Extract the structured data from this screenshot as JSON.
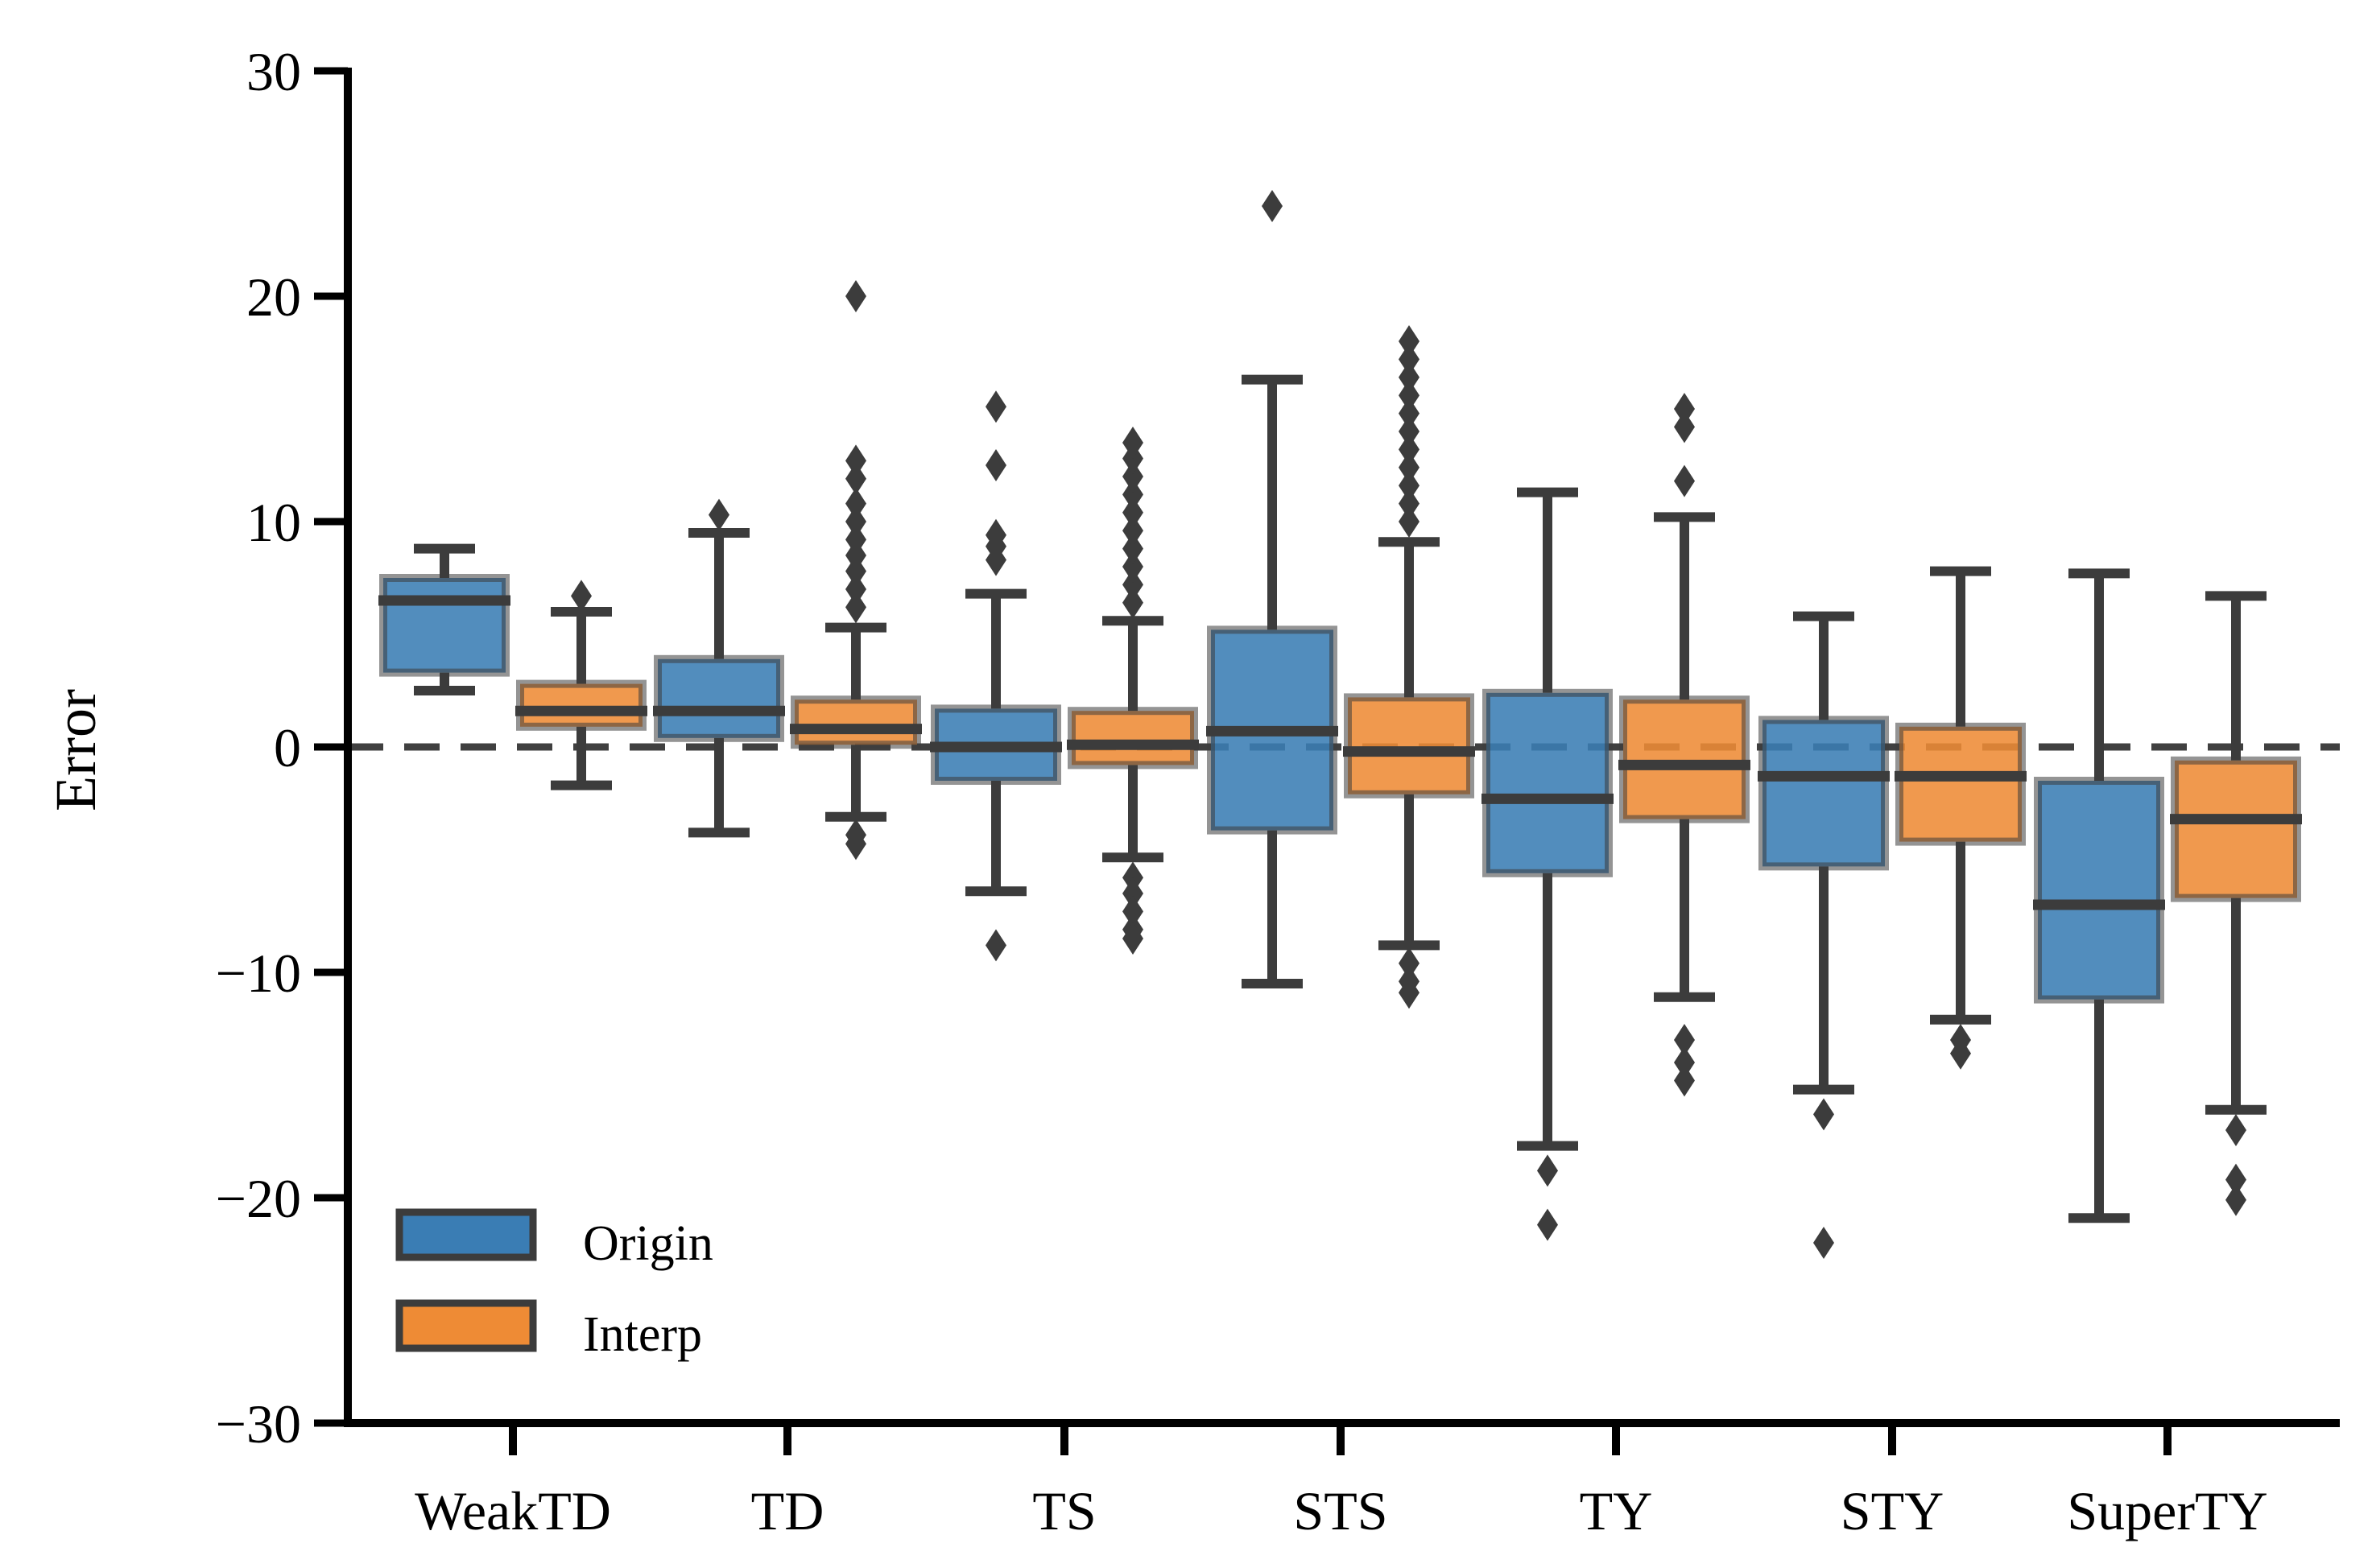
{
  "chart_data": {
    "type": "box",
    "title": "",
    "xlabel": "",
    "ylabel": "Error",
    "ylim": [
      -30,
      30
    ],
    "yticks": [
      30,
      20,
      10,
      0,
      -10,
      -20,
      -30
    ],
    "ytick_labels": [
      "30",
      "20",
      "10",
      "0",
      "−10",
      "−20",
      "−30"
    ],
    "reference_line": 0,
    "categories": [
      "WeakTD",
      "TD",
      "TS",
      "STS",
      "TY",
      "STY",
      "SuperTY"
    ],
    "legend": {
      "position": "lower-left",
      "entries": [
        "Origin",
        "Interp"
      ]
    },
    "colors": {
      "Origin": "#3a7db4",
      "Interp": "#ee8b35",
      "line": "#3c3c3c",
      "axis": "#000000",
      "refline": "#404040"
    },
    "series": [
      {
        "name": "Origin",
        "boxes": [
          {
            "category": "WeakTD",
            "whisker_low": 2.5,
            "q1": 3.3,
            "median": 6.5,
            "q3": 7.5,
            "whisker_high": 8.8,
            "outliers": []
          },
          {
            "category": "TD",
            "whisker_low": -3.8,
            "q1": 0.4,
            "median": 1.6,
            "q3": 3.9,
            "whisker_high": 9.5,
            "outliers": [
              10.3
            ]
          },
          {
            "category": "TS",
            "whisker_low": -6.4,
            "q1": -1.5,
            "median": 0.0,
            "q3": 1.7,
            "whisker_high": 6.8,
            "outliers": [
              8.3,
              8.9,
              9.4,
              12.5,
              15.1,
              -8.8
            ]
          },
          {
            "category": "STS",
            "whisker_low": -10.5,
            "q1": -3.7,
            "median": 0.7,
            "q3": 5.2,
            "whisker_high": 16.3,
            "outliers": [
              24.0
            ]
          },
          {
            "category": "TY",
            "whisker_low": -17.7,
            "q1": -5.6,
            "median": -2.3,
            "q3": 2.4,
            "whisker_high": 11.3,
            "outliers": [
              -18.8,
              -21.2
            ]
          },
          {
            "category": "STY",
            "whisker_low": -15.2,
            "q1": -5.3,
            "median": -1.3,
            "q3": 1.2,
            "whisker_high": 5.8,
            "outliers": [
              -16.3,
              -22.0
            ]
          },
          {
            "category": "SuperTY",
            "whisker_low": -20.9,
            "q1": -11.2,
            "median": -7.0,
            "q3": -1.5,
            "whisker_high": 7.7,
            "outliers": []
          }
        ]
      },
      {
        "name": "Interp",
        "boxes": [
          {
            "category": "WeakTD",
            "whisker_low": -1.7,
            "q1": 0.9,
            "median": 1.6,
            "q3": 2.8,
            "whisker_high": 6.0,
            "outliers": [
              6.7
            ]
          },
          {
            "category": "TD",
            "whisker_low": -3.1,
            "q1": 0.1,
            "median": 0.8,
            "q3": 2.1,
            "whisker_high": 5.3,
            "outliers": [
              6.2,
              7.0,
              7.8,
              8.5,
              9.2,
              10.0,
              10.8,
              11.9,
              12.7,
              20.0,
              -3.9,
              -4.3
            ]
          },
          {
            "category": "TS",
            "whisker_low": -4.9,
            "q1": -0.8,
            "median": 0.1,
            "q3": 1.6,
            "whisker_high": 5.6,
            "outliers": [
              6.4,
              7.2,
              8.0,
              8.8,
              9.6,
              10.4,
              11.2,
              12.0,
              12.8,
              13.5,
              -5.8,
              -6.5,
              -7.3,
              -8.1,
              -8.5
            ]
          },
          {
            "category": "STS",
            "whisker_low": -8.8,
            "q1": -2.1,
            "median": -0.2,
            "q3": 2.2,
            "whisker_high": 9.1,
            "outliers": [
              10.0,
              10.8,
              11.6,
              12.4,
              13.2,
              14.0,
              14.8,
              15.6,
              16.4,
              17.2,
              18.0,
              -9.6,
              -10.4,
              -10.9
            ]
          },
          {
            "category": "TY",
            "whisker_low": -11.1,
            "q1": -3.2,
            "median": -0.8,
            "q3": 2.1,
            "whisker_high": 10.2,
            "outliers": [
              11.8,
              14.2,
              15.0,
              -13.0,
              -14.0,
              -14.8
            ]
          },
          {
            "category": "STY",
            "whisker_low": -12.1,
            "q1": -4.2,
            "median": -1.3,
            "q3": 0.9,
            "whisker_high": 7.8,
            "outliers": [
              -13.0,
              -13.6
            ]
          },
          {
            "category": "SuperTY",
            "whisker_low": -16.1,
            "q1": -6.7,
            "median": -3.2,
            "q3": -0.6,
            "whisker_high": 6.7,
            "outliers": [
              -17.0,
              -19.2,
              -20.1
            ]
          }
        ]
      }
    ]
  }
}
